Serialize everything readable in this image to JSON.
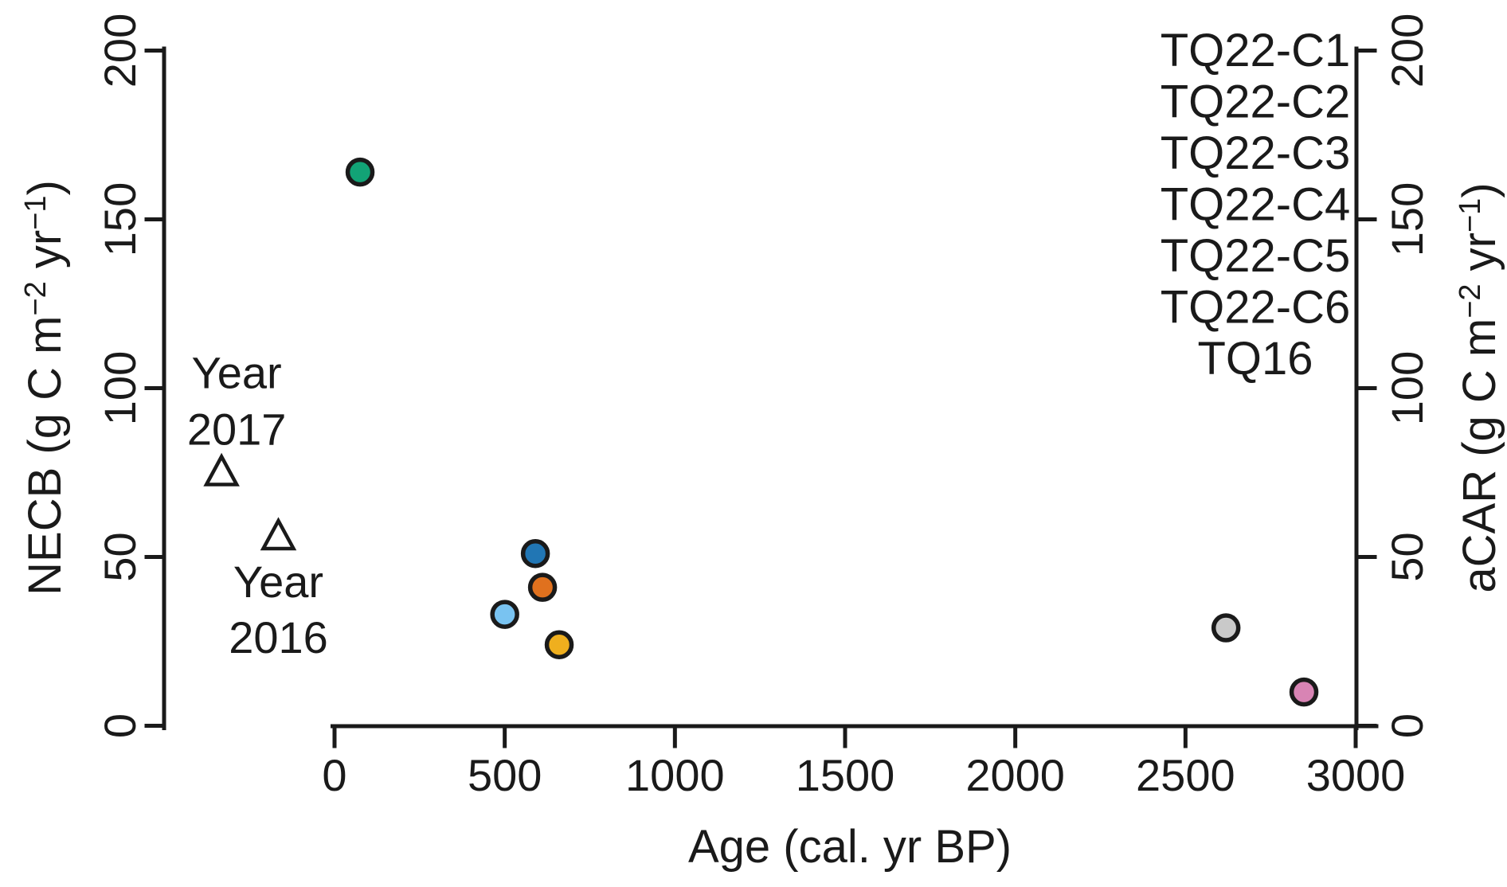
{
  "figure": {
    "background": "#ffffff",
    "axis_color": "#1a1a1a"
  },
  "chart_data": {
    "type": "scatter",
    "title": "",
    "xlabel": "Age (cal. yr BP)",
    "ylabel_left": "NECB (g C m⁻² yr⁻¹)",
    "ylabel_right": "aCAR (g C m⁻² yr⁻¹)",
    "xlim": [
      0,
      3000
    ],
    "ylim": [
      0,
      200
    ],
    "xticks": [
      0,
      500,
      1000,
      1500,
      2000,
      2500,
      3000
    ],
    "yticks_left": [
      0,
      50,
      100,
      150,
      200
    ],
    "yticks_right": [
      0,
      50,
      100,
      150,
      200
    ],
    "grid": false,
    "legend_position": "top-right",
    "series": [
      {
        "name": "TQ22-C1",
        "color": "#E0711E",
        "marker": "circle-filled",
        "points": [
          {
            "x": 611,
            "y": 41
          }
        ]
      },
      {
        "name": "TQ22-C2",
        "color": "#EFAF1E",
        "marker": "circle-filled",
        "points": [
          {
            "x": 660,
            "y": 24
          }
        ]
      },
      {
        "name": "TQ22-C3",
        "color": "#12A376",
        "marker": "circle-filled",
        "points": [
          {
            "x": 75,
            "y": 164
          }
        ]
      },
      {
        "name": "TQ22-C4",
        "color": "#79C3F1",
        "marker": "circle-filled",
        "points": [
          {
            "x": 500,
            "y": 33
          }
        ]
      },
      {
        "name": "TQ22-C5",
        "color": "#2176B4",
        "marker": "circle-filled",
        "points": [
          {
            "x": 590,
            "y": 51
          }
        ]
      },
      {
        "name": "TQ22-C6",
        "color": "#D884B4",
        "marker": "circle-filled",
        "points": [
          {
            "x": 2848,
            "y": 10
          }
        ]
      },
      {
        "name": "TQ16",
        "color": "#C9C9C9",
        "marker": "circle-filled",
        "points": [
          {
            "x": 2619,
            "y": 29
          }
        ]
      }
    ],
    "annotations": [
      {
        "label_lines": [
          "Year",
          "2017"
        ],
        "label_side": "above",
        "marker": "triangle-open",
        "x": -332,
        "y": 75
      },
      {
        "label_lines": [
          "Year",
          "2016"
        ],
        "label_side": "below",
        "marker": "triangle-open",
        "x": -165,
        "y": 56
      }
    ]
  }
}
